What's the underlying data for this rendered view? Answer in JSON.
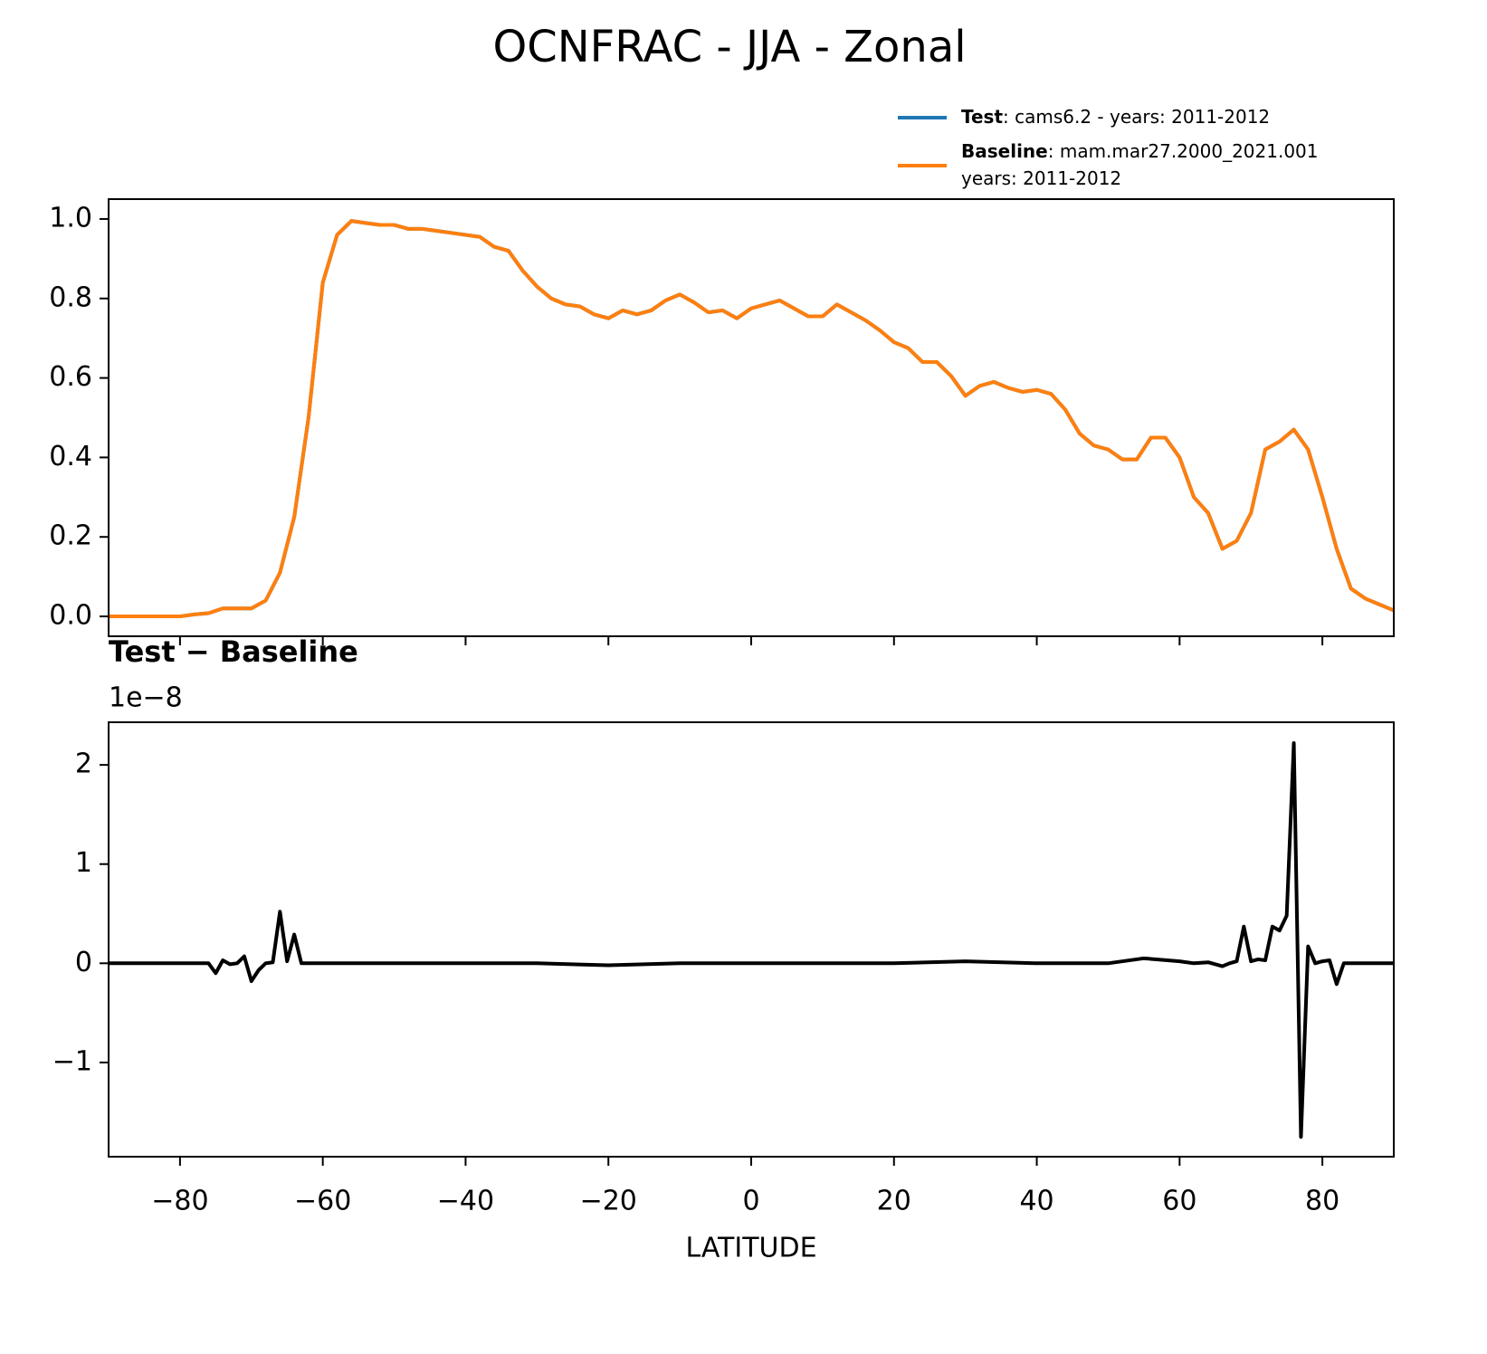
{
  "title": "OCNFRAC - JJA - Zonal",
  "chart_data": [
    {
      "type": "line",
      "x": [
        -90,
        -88,
        -86,
        -84,
        -82,
        -80,
        -78,
        -76,
        -74,
        -72,
        -70,
        -68,
        -66,
        -64,
        -62,
        -60,
        -58,
        -56,
        -54,
        -52,
        -50,
        -48,
        -46,
        -44,
        -42,
        -40,
        -38,
        -36,
        -34,
        -32,
        -30,
        -28,
        -26,
        -24,
        -22,
        -20,
        -18,
        -16,
        -14,
        -12,
        -10,
        -8,
        -6,
        -4,
        -2,
        0,
        2,
        4,
        6,
        8,
        10,
        12,
        14,
        16,
        18,
        20,
        22,
        24,
        26,
        28,
        30,
        32,
        34,
        36,
        38,
        40,
        42,
        44,
        46,
        48,
        50,
        52,
        54,
        56,
        58,
        60,
        62,
        64,
        66,
        68,
        70,
        72,
        74,
        76,
        78,
        80,
        82,
        84,
        86,
        88,
        90
      ],
      "series": [
        {
          "name": "Test",
          "description_lines": [
            ": cams6.2 - years: 2011-2012"
          ],
          "color": "#1f77b4",
          "values": [
            0,
            0,
            0,
            0,
            0,
            0,
            0.005,
            0.008,
            0.02,
            0.02,
            0.02,
            0.04,
            0.11,
            0.25,
            0.5,
            0.84,
            0.96,
            0.995,
            0.99,
            0.985,
            0.985,
            0.975,
            0.975,
            0.97,
            0.965,
            0.96,
            0.955,
            0.93,
            0.92,
            0.87,
            0.83,
            0.8,
            0.785,
            0.78,
            0.76,
            0.75,
            0.77,
            0.76,
            0.77,
            0.795,
            0.81,
            0.79,
            0.765,
            0.77,
            0.75,
            0.775,
            0.785,
            0.795,
            0.775,
            0.755,
            0.755,
            0.785,
            0.765,
            0.745,
            0.72,
            0.69,
            0.675,
            0.64,
            0.64,
            0.605,
            0.555,
            0.58,
            0.59,
            0.575,
            0.565,
            0.57,
            0.56,
            0.52,
            0.46,
            0.43,
            0.42,
            0.395,
            0.395,
            0.45,
            0.45,
            0.4,
            0.3,
            0.26,
            0.17,
            0.19,
            0.26,
            0.42,
            0.44,
            0.47,
            0.42,
            0.3,
            0.17,
            0.07,
            0.045,
            0.03,
            0.015
          ]
        },
        {
          "name": "Baseline",
          "description_lines": [
            ": mam.mar27.2000_2021.001",
            "years: 2011-2012"
          ],
          "color": "#ff7f0e",
          "values": [
            0,
            0,
            0,
            0,
            0,
            0,
            0.005,
            0.008,
            0.02,
            0.02,
            0.02,
            0.04,
            0.11,
            0.25,
            0.5,
            0.84,
            0.96,
            0.995,
            0.99,
            0.985,
            0.985,
            0.975,
            0.975,
            0.97,
            0.965,
            0.96,
            0.955,
            0.93,
            0.92,
            0.87,
            0.83,
            0.8,
            0.785,
            0.78,
            0.76,
            0.75,
            0.77,
            0.76,
            0.77,
            0.795,
            0.81,
            0.79,
            0.765,
            0.77,
            0.75,
            0.775,
            0.785,
            0.795,
            0.775,
            0.755,
            0.755,
            0.785,
            0.765,
            0.745,
            0.72,
            0.69,
            0.675,
            0.64,
            0.64,
            0.605,
            0.555,
            0.58,
            0.59,
            0.575,
            0.565,
            0.57,
            0.56,
            0.52,
            0.46,
            0.43,
            0.42,
            0.395,
            0.395,
            0.45,
            0.45,
            0.4,
            0.3,
            0.26,
            0.17,
            0.19,
            0.26,
            0.42,
            0.44,
            0.47,
            0.42,
            0.3,
            0.17,
            0.07,
            0.045,
            0.03,
            0.015
          ]
        }
      ],
      "xlim": [
        -90,
        90
      ],
      "xticks": [
        -80,
        -60,
        -40,
        -20,
        0,
        20,
        40,
        60,
        80
      ],
      "show_xticklabels": false,
      "ylim": [
        -0.05,
        1.05
      ],
      "yticks": [
        {
          "value": 0,
          "label": "0.0"
        },
        0.2,
        0.4,
        0.6,
        0.8,
        {
          "value": 1,
          "label": "1.0"
        }
      ],
      "legend": "upper right"
    },
    {
      "type": "line",
      "title": "Test − Baseline",
      "offset_text": "1e−8",
      "xlabel": "LATITUDE",
      "x": [
        -90,
        -76,
        -75,
        -74,
        -73,
        -72,
        -71,
        -70,
        -69,
        -68,
        -67,
        -66,
        -65,
        -64,
        -63,
        -60,
        -50,
        -40,
        -30,
        -20,
        -10,
        0,
        10,
        20,
        30,
        40,
        50,
        55,
        60,
        62,
        64,
        66,
        67,
        68,
        69,
        70,
        71,
        72,
        73,
        74,
        75,
        76,
        77,
        78,
        79,
        80,
        81,
        82,
        83,
        86,
        90
      ],
      "series": [
        {
          "name": "Test − Baseline",
          "color": "#000000",
          "values": [
            0,
            0,
            -0.1,
            0.03,
            -0.01,
            0,
            0.07,
            -0.18,
            -0.07,
            0,
            0.01,
            0.52,
            0.02,
            0.29,
            0,
            0,
            0,
            0,
            0,
            -0.02,
            0,
            0,
            0,
            0,
            0.02,
            0,
            0,
            0.05,
            0.02,
            0,
            0.01,
            -0.03,
            0,
            0.02,
            0.37,
            0.02,
            0.04,
            0.03,
            0.37,
            0.33,
            0.48,
            2.22,
            -1.75,
            0.17,
            0,
            0.02,
            0.03,
            -0.21,
            0,
            0,
            0
          ]
        }
      ],
      "xlim": [
        -90,
        90
      ],
      "xticks": [
        {
          "value": -80,
          "label": "−80"
        },
        {
          "value": -60,
          "label": "−60"
        },
        {
          "value": -40,
          "label": "−40"
        },
        {
          "value": -20,
          "label": "−20"
        },
        0,
        20,
        40,
        60,
        80
      ],
      "show_xticklabels": true,
      "ylim": [
        -1.95,
        2.43
      ],
      "yticks": [
        {
          "value": -1,
          "label": "−1"
        },
        0,
        1,
        2
      ]
    }
  ]
}
